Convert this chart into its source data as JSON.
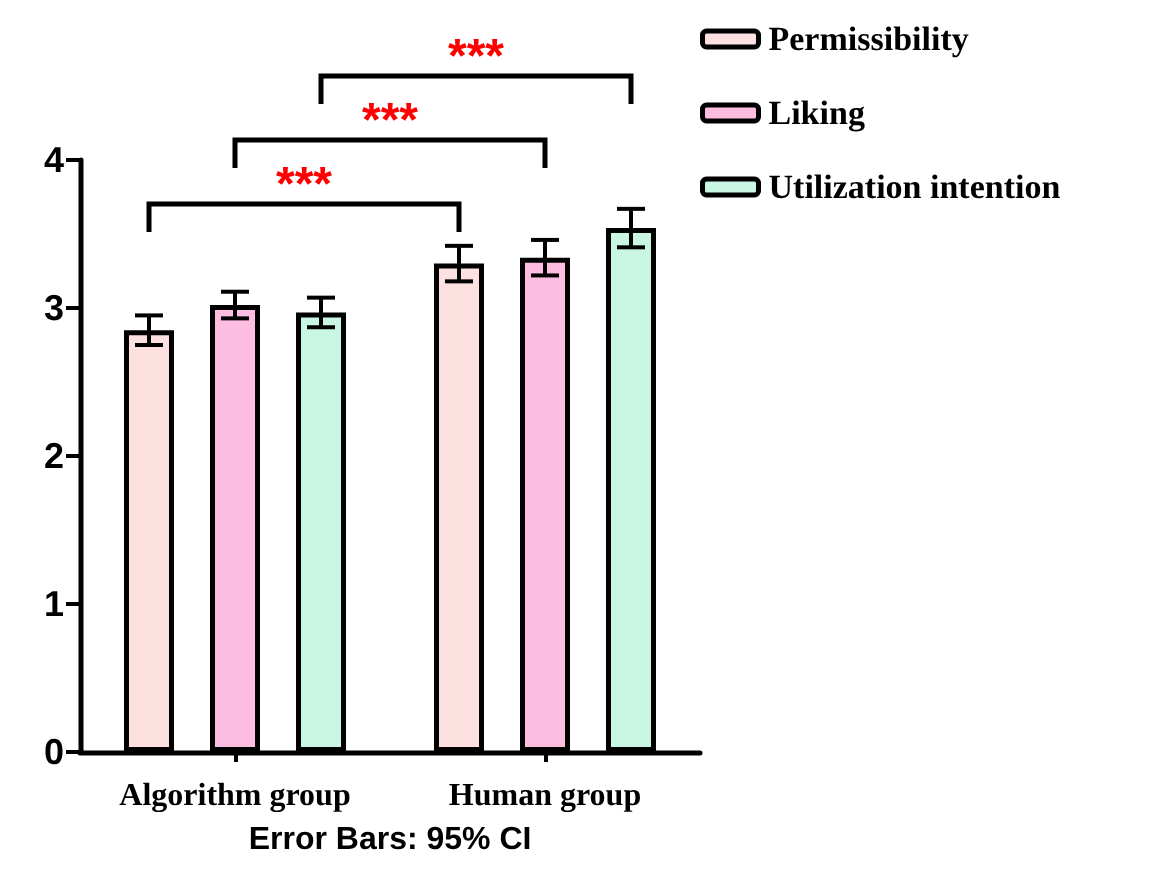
{
  "chart_data": {
    "type": "bar",
    "categories": [
      "Algorithm group",
      "Human group"
    ],
    "series": [
      {
        "name": "Permissibility",
        "color": "#fde0e0",
        "values": [
          2.85,
          3.3
        ],
        "errors": [
          0.1,
          0.12
        ]
      },
      {
        "name": "Liking",
        "color": "#fcbde0",
        "values": [
          3.02,
          3.34
        ],
        "errors": [
          0.09,
          0.12
        ]
      },
      {
        "name": "Utilization intention",
        "color": "#caf6e4",
        "values": [
          2.97,
          3.54
        ],
        "errors": [
          0.1,
          0.13
        ]
      }
    ],
    "xlabel": "Error Bars: 95% CI",
    "ylim": [
      0,
      4
    ],
    "yticks": [
      0,
      1,
      2,
      3,
      4
    ],
    "grid": false,
    "legend": "top right",
    "annotations": [
      "***",
      "***",
      "***"
    ]
  }
}
